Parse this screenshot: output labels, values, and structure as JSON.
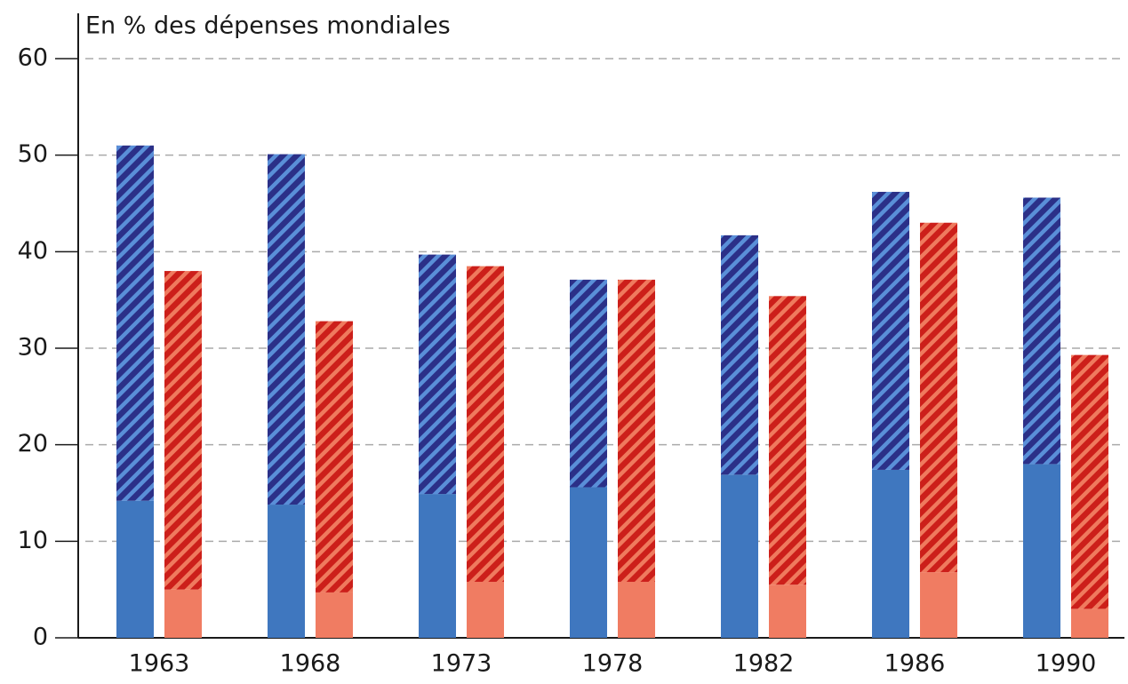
{
  "chart_data": {
    "type": "bar",
    "title": "En % des dépenses mondiales",
    "categories": [
      "1963",
      "1968",
      "1973",
      "1978",
      "1982",
      "1986",
      "1990"
    ],
    "series": [
      {
        "stack": "a",
        "color": "#3f77bf",
        "values": [
          14.2,
          13.8,
          14.9,
          15.6,
          16.9,
          17.4,
          18.0
        ]
      },
      {
        "stack": "a",
        "color": "#2b3088",
        "hatch_color": "#5a8fd8",
        "pattern": "hatch",
        "values": [
          36.8,
          36.3,
          24.8,
          21.5,
          24.8,
          28.8,
          27.6
        ]
      },
      {
        "stack": "b",
        "color": "#f07c62",
        "values": [
          5.0,
          4.7,
          5.8,
          5.8,
          5.5,
          6.8,
          3.0
        ]
      },
      {
        "stack": "b",
        "color": "#cc1f1a",
        "hatch_color": "#ef7a5e",
        "pattern": "hatch",
        "values": [
          33.0,
          28.1,
          32.7,
          31.3,
          29.9,
          36.2,
          26.3
        ]
      }
    ],
    "ylim": [
      0,
      60
    ],
    "yticks": [
      0,
      10,
      20,
      30,
      40,
      50,
      60
    ],
    "grid": true
  }
}
